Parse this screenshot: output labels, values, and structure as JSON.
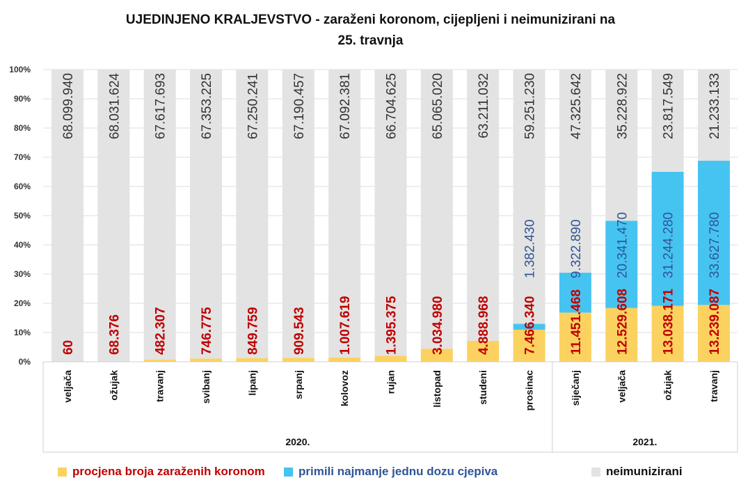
{
  "chart_data": {
    "type": "bar",
    "stacked": "percent",
    "title": "UJEDINJENO KRALJEVSTVO - zaraženi koronom, cijepljeni i neimunizirani na 25. travnja",
    "title_lines": [
      "UJEDINJENO KRALJEVSTVO - zaraženi koronom, cijepljeni i neimunizirani na",
      "25. travnja"
    ],
    "categories": [
      "veljača",
      "ožujak",
      "travanj",
      "svibanj",
      "lipanj",
      "srpanj",
      "kolovoz",
      "rujan",
      "listopad",
      "studeni",
      "prosinac",
      "siječanj",
      "veljača",
      "ožujak",
      "travanj"
    ],
    "groups": [
      {
        "label": "2020.",
        "count": 11
      },
      {
        "label": "2021.",
        "count": 4
      }
    ],
    "yticks": [
      "0%",
      "10%",
      "20%",
      "30%",
      "40%",
      "50%",
      "60%",
      "70%",
      "80%",
      "90%",
      "100%"
    ],
    "ylim": [
      0,
      100
    ],
    "grid": true,
    "legend_position": "bottom",
    "series": [
      {
        "name": "procjena broja zaraženih koronom",
        "color": "#fbd25f",
        "label_color": "#c00000",
        "values": [
          60,
          68376,
          482307,
          746775,
          849759,
          909543,
          1007619,
          1395375,
          3034980,
          4888968,
          7466340,
          11451468,
          12529608,
          13038171,
          13239087
        ],
        "labels": [
          "60",
          "68.376",
          "482.307",
          "746.775",
          "849.759",
          "909.543",
          "1.007.619",
          "1.395.375",
          "3.034.980",
          "4.888.968",
          "7.466.340",
          "11.451.468",
          "12.529.608",
          "13.038.171",
          "13.239.087"
        ]
      },
      {
        "name": "primili najmanje jednu dozu cjepiva",
        "color": "#46c4f1",
        "label_color": "#2f5597",
        "values": [
          0,
          0,
          0,
          0,
          0,
          0,
          0,
          0,
          0,
          0,
          1382430,
          9322890,
          20341470,
          31244280,
          33627780
        ],
        "labels": [
          "",
          "",
          "",
          "",
          "",
          "",
          "",
          "",
          "",
          "",
          "1.382.430",
          "9.322.890",
          "20.341.470",
          "31.244.280",
          "33.627.780"
        ]
      },
      {
        "name": "neimunizirani",
        "color": "#e3e3e3",
        "label_color": "#333333",
        "values": [
          68099940,
          68031624,
          67617693,
          67353225,
          67250241,
          67190457,
          67092381,
          66704625,
          65065020,
          63211032,
          59251230,
          47325642,
          35228922,
          23817549,
          21233133
        ],
        "labels": [
          "68.099.940",
          "68.031.624",
          "67.617.693",
          "67.353.225",
          "67.250.241",
          "67.190.457",
          "67.092.381",
          "66.704.625",
          "65.065.020",
          "63.211.032",
          "59.251.230",
          "47.325.642",
          "35.228.922",
          "23.817.549",
          "21.233.133"
        ]
      }
    ]
  }
}
